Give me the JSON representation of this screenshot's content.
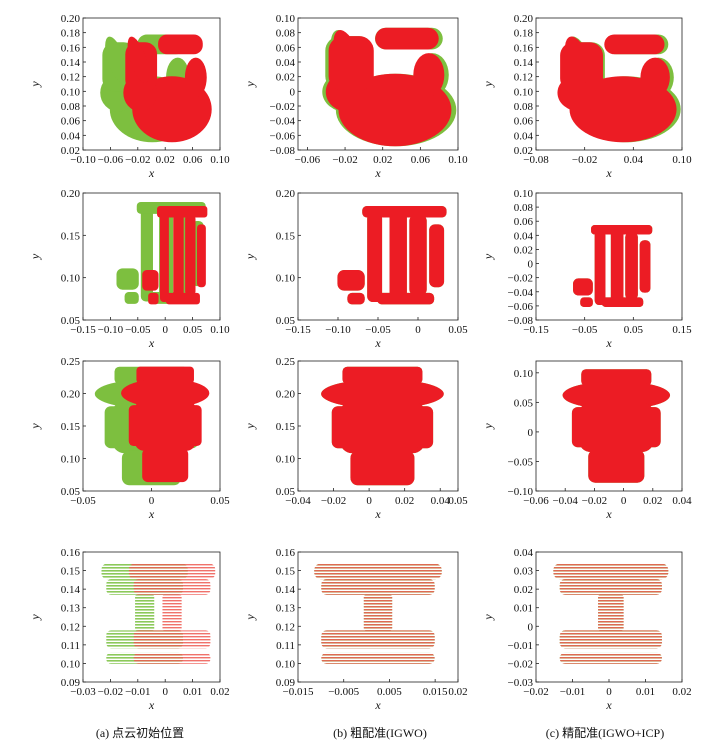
{
  "figure": {
    "colors": {
      "source": "#ec1c24",
      "target": "#7dbf3f"
    },
    "columns": [
      "(a) 点云初始位置",
      "(b) 粗配准(IGWO)",
      "(c) 精配准(IGWO+ICP)"
    ]
  },
  "chart_data": [
    {
      "type": "scatter",
      "object": "bunny",
      "stage": "initial",
      "xlabel": "x",
      "ylabel": "y",
      "xlim": [
        -0.1,
        0.1
      ],
      "ylim": [
        0.02,
        0.2
      ],
      "xticks": [
        "−0.10",
        "−0.06",
        "−0.02",
        "0.02",
        "0.06",
        "0.10"
      ],
      "xtick_values": [
        -0.1,
        -0.06,
        -0.02,
        0.02,
        0.06,
        0.1
      ],
      "yticks": [
        "0.02",
        "0.04",
        "0.06",
        "0.08",
        "0.10",
        "0.12",
        "0.14",
        "0.16",
        "0.18",
        "0.20"
      ],
      "ytick_values": [
        0.02,
        0.04,
        0.06,
        0.08,
        0.1,
        0.12,
        0.14,
        0.16,
        0.18,
        0.2
      ],
      "series": [
        {
          "role": "target",
          "x_range": [
            -0.095,
            0.06
          ],
          "y_range": [
            0.035,
            0.185
          ]
        },
        {
          "role": "source",
          "x_range": [
            -0.06,
            0.085
          ],
          "y_range": [
            0.035,
            0.185
          ]
        }
      ]
    },
    {
      "type": "scatter",
      "object": "bunny",
      "stage": "coarse",
      "xlabel": "x",
      "ylabel": "y",
      "xlim": [
        -0.07,
        0.1
      ],
      "ylim": [
        -0.08,
        0.1
      ],
      "xticks": [
        "−0.06",
        "−0.02",
        "0.02",
        "0.06",
        "0.10"
      ],
      "xtick_values": [
        -0.06,
        -0.02,
        0.02,
        0.06,
        0.1
      ],
      "yticks": [
        "−0.08",
        "−0.06",
        "−0.04",
        "−0.02",
        "0",
        "0.02",
        "0.04",
        "0.06",
        "0.08",
        "0.10"
      ],
      "ytick_values": [
        -0.08,
        -0.06,
        -0.04,
        -0.02,
        0,
        0.02,
        0.04,
        0.06,
        0.08,
        0.1
      ],
      "series": [
        {
          "role": "target",
          "x_range": [
            -0.065,
            0.095
          ],
          "y_range": [
            -0.07,
            0.095
          ]
        },
        {
          "role": "source",
          "x_range": [
            -0.06,
            0.09
          ],
          "y_range": [
            -0.07,
            0.095
          ]
        }
      ]
    },
    {
      "type": "scatter",
      "object": "bunny",
      "stage": "fine",
      "xlabel": "x",
      "ylabel": "y",
      "xlim": [
        -0.08,
        0.1
      ],
      "ylim": [
        0.02,
        0.2
      ],
      "xticks": [
        "−0.08",
        "−0.02",
        "0.04",
        "0.10"
      ],
      "xtick_values": [
        -0.08,
        -0.02,
        0.04,
        0.1
      ],
      "yticks": [
        "0.02",
        "0.04",
        "0.06",
        "0.08",
        "0.10",
        "0.12",
        "0.14",
        "0.16",
        "0.18",
        "0.20"
      ],
      "ytick_values": [
        0.02,
        0.04,
        0.06,
        0.08,
        0.1,
        0.12,
        0.14,
        0.16,
        0.18,
        0.2
      ],
      "series": [
        {
          "role": "target",
          "x_range": [
            -0.075,
            0.095
          ],
          "y_range": [
            0.035,
            0.185
          ]
        },
        {
          "role": "source",
          "x_range": [
            -0.075,
            0.09
          ],
          "y_range": [
            0.035,
            0.185
          ]
        }
      ]
    },
    {
      "type": "scatter",
      "object": "dragon",
      "stage": "initial",
      "xlabel": "x",
      "ylabel": "y",
      "xlim": [
        -0.15,
        0.1
      ],
      "ylim": [
        0.05,
        0.2
      ],
      "xticks": [
        "−0.15",
        "−0.10",
        "−0.05",
        "0",
        "0.05",
        "0.10"
      ],
      "xtick_values": [
        -0.15,
        -0.1,
        -0.05,
        0,
        0.05,
        0.1
      ],
      "yticks": [
        "0.05",
        "0.10",
        "0.15",
        "0.20"
      ],
      "ytick_values": [
        0.05,
        0.1,
        0.15,
        0.2
      ],
      "series": [
        {
          "role": "target",
          "x_range": [
            -0.1,
            0.085
          ],
          "y_range": [
            0.055,
            0.195
          ]
        },
        {
          "role": "source",
          "x_range": [
            -0.05,
            0.085
          ],
          "y_range": [
            0.055,
            0.19
          ]
        }
      ]
    },
    {
      "type": "scatter",
      "object": "dragon",
      "stage": "coarse",
      "xlabel": "x",
      "ylabel": "y",
      "xlim": [
        -0.15,
        0.05
      ],
      "ylim": [
        0.05,
        0.2
      ],
      "xticks": [
        "−0.15",
        "−0.10",
        "−0.05",
        "0",
        "0.05"
      ],
      "xtick_values": [
        -0.15,
        -0.1,
        -0.05,
        0,
        0.05
      ],
      "yticks": [
        "0.05",
        "0.10",
        "0.15",
        "0.20"
      ],
      "ytick_values": [
        0.05,
        0.1,
        0.15,
        0.2
      ],
      "series": [
        {
          "role": "target",
          "x_range": [
            -0.11,
            0.045
          ],
          "y_range": [
            0.055,
            0.19
          ]
        },
        {
          "role": "source",
          "x_range": [
            -0.11,
            0.045
          ],
          "y_range": [
            0.055,
            0.19
          ]
        }
      ]
    },
    {
      "type": "scatter",
      "object": "dragon",
      "stage": "fine",
      "xlabel": "x",
      "ylabel": "y",
      "xlim": [
        -0.15,
        0.15
      ],
      "ylim": [
        -0.08,
        0.1
      ],
      "xticks": [
        "−0.15",
        "−0.05",
        "0.05",
        "0.15"
      ],
      "xtick_values": [
        -0.15,
        -0.05,
        0.05,
        0.15
      ],
      "yticks": [
        "−0.08",
        "−0.06",
        "−0.04",
        "−0.02",
        "0",
        "0.02",
        "0.04",
        "0.06",
        "0.08",
        "0.10"
      ],
      "ytick_values": [
        -0.08,
        -0.06,
        -0.04,
        -0.02,
        0,
        0.02,
        0.04,
        0.06,
        0.08,
        0.1
      ],
      "series": [
        {
          "role": "target",
          "x_range": [
            -0.085,
            0.1
          ],
          "y_range": [
            -0.075,
            0.06
          ]
        },
        {
          "role": "source",
          "x_range": [
            -0.085,
            0.1
          ],
          "y_range": [
            -0.075,
            0.06
          ]
        }
      ]
    },
    {
      "type": "scatter",
      "object": "buddha",
      "stage": "initial",
      "xlabel": "x",
      "ylabel": "y",
      "xlim": [
        -0.05,
        0.05
      ],
      "ylim": [
        0.05,
        0.25
      ],
      "xticks": [
        "−0.05",
        "0",
        "0.05"
      ],
      "xtick_values": [
        -0.05,
        0,
        0.05
      ],
      "yticks": [
        "0.05",
        "0.10",
        "0.15",
        "0.20",
        "0.25"
      ],
      "ytick_values": [
        0.05,
        0.1,
        0.15,
        0.2,
        0.25
      ],
      "series": [
        {
          "role": "target",
          "x_range": [
            -0.045,
            0.045
          ],
          "y_range": [
            0.055,
            0.245
          ]
        },
        {
          "role": "source",
          "x_range": [
            -0.025,
            0.045
          ],
          "y_range": [
            0.06,
            0.245
          ]
        }
      ]
    },
    {
      "type": "scatter",
      "object": "buddha",
      "stage": "coarse",
      "xlabel": "x",
      "ylabel": "y",
      "xlim": [
        -0.04,
        0.05
      ],
      "ylim": [
        0.05,
        0.25
      ],
      "xticks": [
        "−0.04",
        "−0.02",
        "0",
        "0.02",
        "0.04",
        "0.05"
      ],
      "xtick_values": [
        -0.04,
        -0.02,
        0,
        0.02,
        0.04,
        0.05
      ],
      "yticks": [
        "0.05",
        "0.10",
        "0.15",
        "0.20",
        "0.25"
      ],
      "ytick_values": [
        0.05,
        0.1,
        0.15,
        0.2,
        0.25
      ],
      "series": [
        {
          "role": "target",
          "x_range": [
            -0.03,
            0.045
          ],
          "y_range": [
            0.055,
            0.245
          ]
        },
        {
          "role": "source",
          "x_range": [
            -0.03,
            0.045
          ],
          "y_range": [
            0.055,
            0.245
          ]
        }
      ]
    },
    {
      "type": "scatter",
      "object": "buddha",
      "stage": "fine",
      "xlabel": "x",
      "ylabel": "y",
      "xlim": [
        -0.06,
        0.04
      ],
      "ylim": [
        -0.1,
        0.12
      ],
      "xticks": [
        "−0.06",
        "−0.04",
        "−0.02",
        "0",
        "0.02",
        "0.04"
      ],
      "xtick_values": [
        -0.06,
        -0.04,
        -0.02,
        0,
        0.02,
        0.04
      ],
      "yticks": [
        "−0.10",
        "−0.05",
        "0",
        "0.05",
        "0.10"
      ],
      "ytick_values": [
        -0.1,
        -0.05,
        0,
        0.05,
        0.1
      ],
      "series": [
        {
          "role": "target",
          "x_range": [
            -0.045,
            0.035
          ],
          "y_range": [
            -0.09,
            0.11
          ]
        },
        {
          "role": "source",
          "x_range": [
            -0.045,
            0.035
          ],
          "y_range": [
            -0.09,
            0.11
          ]
        }
      ]
    },
    {
      "type": "scatter",
      "object": "spool",
      "stage": "initial",
      "xlabel": "x",
      "ylabel": "y",
      "xlim": [
        -0.03,
        0.02
      ],
      "ylim": [
        0.09,
        0.16
      ],
      "xticks": [
        "−0.03",
        "−0.02",
        "−0.01",
        "0",
        "0.01",
        "0.02"
      ],
      "xtick_values": [
        -0.03,
        -0.02,
        -0.01,
        0,
        0.01,
        0.02
      ],
      "yticks": [
        "0.09",
        "0.10",
        "0.11",
        "0.12",
        "0.13",
        "0.14",
        "0.15",
        "0.16"
      ],
      "ytick_values": [
        0.09,
        0.1,
        0.11,
        0.12,
        0.13,
        0.14,
        0.15,
        0.16
      ],
      "series": [
        {
          "role": "target",
          "x_range": [
            -0.025,
            0.01
          ],
          "y_range": [
            0.095,
            0.155
          ]
        },
        {
          "role": "source",
          "x_range": [
            -0.015,
            0.02
          ],
          "y_range": [
            0.095,
            0.155
          ]
        }
      ]
    },
    {
      "type": "scatter",
      "object": "spool",
      "stage": "coarse",
      "xlabel": "x",
      "ylabel": "y",
      "xlim": [
        -0.015,
        0.02
      ],
      "ylim": [
        0.09,
        0.16
      ],
      "xticks": [
        "−0.015",
        "−0.005",
        "0.005",
        "0.015",
        "0.02"
      ],
      "xtick_values": [
        -0.015,
        -0.005,
        0.005,
        0.015,
        0.02
      ],
      "yticks": [
        "0.09",
        "0.10",
        "0.11",
        "0.12",
        "0.13",
        "0.14",
        "0.15",
        "0.16"
      ],
      "ytick_values": [
        0.09,
        0.1,
        0.11,
        0.12,
        0.13,
        0.14,
        0.15,
        0.16
      ],
      "series": [
        {
          "role": "target",
          "x_range": [
            -0.013,
            0.018
          ],
          "y_range": [
            0.095,
            0.155
          ]
        },
        {
          "role": "source",
          "x_range": [
            -0.013,
            0.018
          ],
          "y_range": [
            0.095,
            0.155
          ]
        }
      ]
    },
    {
      "type": "scatter",
      "object": "spool",
      "stage": "fine",
      "xlabel": "x",
      "ylabel": "y",
      "xlim": [
        -0.02,
        0.02
      ],
      "ylim": [
        -0.03,
        0.04
      ],
      "xticks": [
        "−0.02",
        "−0.01",
        "0",
        "0.01",
        "0.02"
      ],
      "xtick_values": [
        -0.02,
        -0.01,
        0,
        0.01,
        0.02
      ],
      "yticks": [
        "−0.03",
        "−0.02",
        "−0.01",
        "0",
        "0.01",
        "0.02",
        "0.03",
        "0.04"
      ],
      "ytick_values": [
        -0.03,
        -0.02,
        -0.01,
        0,
        0.01,
        0.02,
        0.03,
        0.04
      ],
      "series": [
        {
          "role": "target",
          "x_range": [
            -0.017,
            0.018
          ],
          "y_range": [
            -0.025,
            0.035
          ]
        },
        {
          "role": "source",
          "x_range": [
            -0.017,
            0.018
          ],
          "y_range": [
            -0.025,
            0.035
          ]
        }
      ]
    }
  ]
}
